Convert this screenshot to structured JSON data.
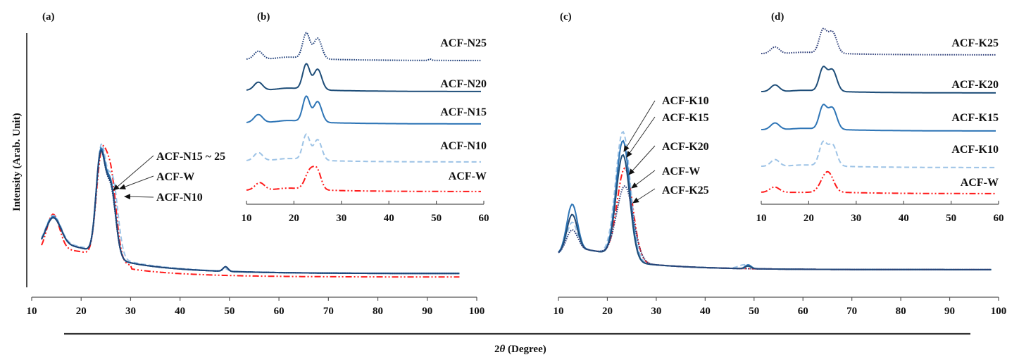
{
  "figure": {
    "xlabel_prefix": "2",
    "xlabel_theta": "θ",
    "xlabel_suffix": " (Degree)",
    "ylabel": "Intensity (Arab. Unit)"
  },
  "colors": {
    "ACF-W": "#ff1a1a",
    "N10": "#9dc3e6",
    "N15": "#2e75b6",
    "N20": "#1f4e79",
    "N25": "#1f3f7a",
    "K10": "#9dc3e6",
    "K15": "#2e75b6",
    "K20": "#1f4e79",
    "K25": "#2f3f7a"
  },
  "chart_data": [
    {
      "panel": "(a)",
      "type": "line",
      "xlabel": "2θ (Degree)",
      "ylabel": "Intensity (Arab. Unit)",
      "xlim": [
        10,
        100
      ],
      "xticks": [
        "10",
        "20",
        "30",
        "40",
        "50",
        "60",
        "70",
        "80",
        "90",
        "100"
      ],
      "annotations": [
        "ACF-N15 ~ 25",
        "ACF-W",
        "ACF-N10"
      ],
      "series": [
        {
          "name": "ACF-W",
          "style": "dashdot",
          "color": "#ff1a1a",
          "peaks": [
            [
              14.3,
              0.32,
              1.3
            ],
            [
              24.0,
              0.78,
              1.0
            ],
            [
              26.0,
              0.72,
              1.1
            ],
            [
              49.2,
              0.0,
              0.5
            ]
          ],
          "baseline": [
            0.12,
            0.05
          ]
        },
        {
          "name": "ACF-N10",
          "style": "dashed",
          "color": "#9dc3e6",
          "peaks": [
            [
              14.3,
              0.26,
              1.5
            ],
            [
              24.0,
              0.86,
              0.9
            ],
            [
              26.3,
              0.68,
              1.1
            ],
            [
              49.2,
              0.02,
              0.5
            ]
          ],
          "baseline": [
            0.14,
            0.08
          ]
        },
        {
          "name": "ACF-N15",
          "style": "solid",
          "color": "#2e75b6",
          "peaks": [
            [
              14.3,
              0.26,
              1.5
            ],
            [
              23.9,
              0.84,
              0.9
            ],
            [
              26.0,
              0.62,
              1.0
            ],
            [
              49.2,
              0.04,
              0.5
            ]
          ],
          "baseline": [
            0.14,
            0.07
          ]
        },
        {
          "name": "ACF-N20",
          "style": "solid",
          "color": "#1f4e79",
          "peaks": [
            [
              14.3,
              0.25,
              1.5
            ],
            [
              23.9,
              0.82,
              0.9
            ],
            [
              26.0,
              0.6,
              1.0
            ],
            [
              49.2,
              0.04,
              0.5
            ]
          ],
          "baseline": [
            0.14,
            0.07
          ]
        },
        {
          "name": "ACF-N25",
          "style": "dotted",
          "color": "#1f3f7a",
          "peaks": [
            [
              14.3,
              0.25,
              1.5
            ],
            [
              23.9,
              0.83,
              0.9
            ],
            [
              26.0,
              0.58,
              1.0
            ],
            [
              49.2,
              0.04,
              0.5
            ]
          ],
          "baseline": [
            0.14,
            0.07
          ]
        }
      ]
    },
    {
      "panel": "(b)",
      "type": "line",
      "xlim": [
        10,
        60
      ],
      "xticks": [
        "10",
        "20",
        "30",
        "40",
        "50",
        "60"
      ],
      "series": [
        {
          "name": "ACF-N25",
          "style": "dotted",
          "color": "#1f3f7a",
          "label": "ACF-N25"
        },
        {
          "name": "ACF-N20",
          "style": "solid",
          "color": "#1f4e79",
          "label": "ACF-N20"
        },
        {
          "name": "ACF-N15",
          "style": "solid",
          "color": "#2e75b6",
          "label": "ACF-N15"
        },
        {
          "name": "ACF-N10",
          "style": "dashed",
          "color": "#9dc3e6",
          "label": "ACF-N10"
        },
        {
          "name": "ACF-W",
          "style": "dashdot",
          "color": "#ff1a1a",
          "label": "ACF-W"
        }
      ]
    },
    {
      "panel": "(c)",
      "type": "line",
      "xlabel": "2θ (Degree)",
      "xlim": [
        10,
        100
      ],
      "xticks": [
        "10",
        "20",
        "30",
        "40",
        "50",
        "60",
        "70",
        "80",
        "90",
        "100"
      ],
      "annotations": [
        "ACF-K10",
        "ACF-K15",
        "ACF-K20",
        "ACF-W",
        "ACF-K25"
      ],
      "series": [
        {
          "name": "ACF-W",
          "style": "dashdot",
          "color": "#ff1a1a",
          "peaks": [
            [
              12.8,
              0.3,
              1.1
            ],
            [
              23.6,
              0.72,
              1.6
            ],
            [
              49.0,
              0.0,
              0.6
            ]
          ]
        },
        {
          "name": "ACF-K10",
          "style": "dashed",
          "color": "#9dc3e6",
          "peaks": [
            [
              12.8,
              0.24,
              1.1
            ],
            [
              23.2,
              1.0,
              1.5
            ],
            [
              48.0,
              0.03,
              1.2
            ]
          ]
        },
        {
          "name": "ACF-K15",
          "style": "solid",
          "color": "#2e75b6",
          "peaks": [
            [
              12.8,
              0.38,
              1.1
            ],
            [
              23.2,
              0.93,
              1.4
            ],
            [
              48.8,
              0.03,
              0.6
            ]
          ]
        },
        {
          "name": "ACF-K20",
          "style": "solid",
          "color": "#1f4e79",
          "peaks": [
            [
              12.8,
              0.3,
              1.1
            ],
            [
              23.2,
              0.82,
              1.4
            ],
            [
              48.8,
              0.02,
              0.6
            ]
          ]
        },
        {
          "name": "ACF-K25",
          "style": "dotted",
          "color": "#2f3f7a",
          "peaks": [
            [
              12.8,
              0.18,
              1.2
            ],
            [
              23.6,
              0.58,
              1.7
            ],
            [
              48.8,
              0.0,
              0.6
            ]
          ]
        }
      ]
    },
    {
      "panel": "(d)",
      "type": "line",
      "xlim": [
        10,
        60
      ],
      "xticks": [
        "10",
        "20",
        "30",
        "40",
        "50",
        "60"
      ],
      "series": [
        {
          "name": "ACF-K25",
          "style": "dotted",
          "color": "#2f3f7a",
          "label": "ACF-K25"
        },
        {
          "name": "ACF-K20",
          "style": "solid",
          "color": "#1f4e79",
          "label": "ACF-K20"
        },
        {
          "name": "ACF-K15",
          "style": "solid",
          "color": "#2e75b6",
          "label": "ACF-K15"
        },
        {
          "name": "ACF-K10",
          "style": "dashed",
          "color": "#9dc3e6",
          "label": "ACF-K10"
        },
        {
          "name": "ACF-W",
          "style": "dashdot",
          "color": "#ff1a1a",
          "label": "ACF-W"
        }
      ]
    }
  ]
}
